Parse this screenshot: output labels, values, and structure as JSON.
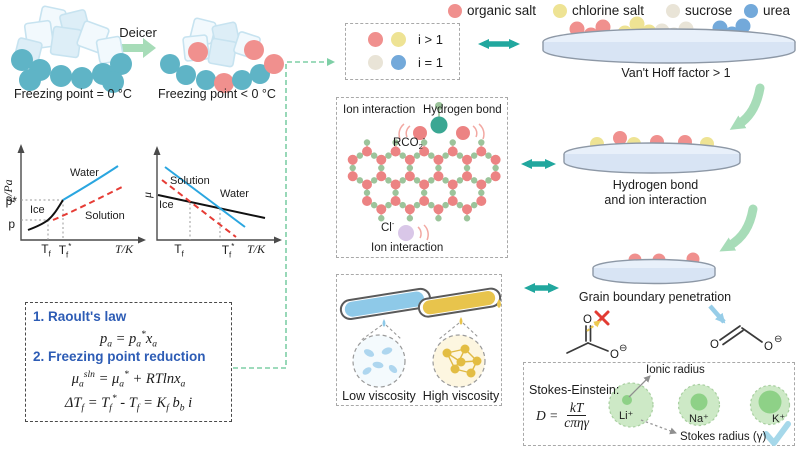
{
  "colors": {
    "organic_salt": "#f0908e",
    "chlorine_salt": "#eee394",
    "sucrose": "#e9e4d7",
    "urea": "#73a9da",
    "teal_disk": "#5fb4c6",
    "teal_arrow": "#21a79e",
    "soft_green_arrow": "#a7dcb8",
    "connector_green": "#7ecfa6",
    "water_curve_blue": "#2aa6e0",
    "solution_curve_red": "#e63c35",
    "heading_blue": "#2d5cb5",
    "dish_fill": "#d8e4f4",
    "lattice_node_red": "#ec8383",
    "lattice_dot_green": "#9cc49b",
    "lattice_bond_pink": "#f0b6ad",
    "rco2_teal": "#3aa793",
    "chloride_purple": "#d9c7e8",
    "low_viscosity_blue": "#8ec9e8",
    "high_viscosity_yellow": "#e8c44c",
    "blob_outer_green": "#cde9c6",
    "blob_core_green": "#8ed187",
    "check_blue": "#a6d8ea",
    "cross_red": "#e23b33"
  },
  "intro": {
    "deicer_label": "Deicer",
    "before_label": "Freezing point = 0 °C",
    "after_label": "Freezing point < 0 °C"
  },
  "legend": {
    "items": [
      {
        "label": "organic salt"
      },
      {
        "label": "chlorine salt"
      },
      {
        "label": "sucrose"
      },
      {
        "label": "urea"
      }
    ],
    "i_gt": "i > 1",
    "i_eq": "i = 1"
  },
  "charts": {
    "vapor_pressure": {
      "ylabel": "p/Pa",
      "xlabel": "T/K",
      "water": "Water",
      "ice": "Ice",
      "solution": "Solution",
      "p_star": "p*",
      "p": "p",
      "tf": "T_{f}",
      "tf_star": "T_{f}^{*}"
    },
    "chemical_potential": {
      "ylabel": "μ",
      "xlabel": "T/K",
      "water": "Water",
      "ice": "Ice",
      "solution": "Solution",
      "tf": "T_{f}",
      "tf_star": "T_{f}^{*}"
    }
  },
  "equations": {
    "heading1": "1. Raoult's law",
    "eq1": "p_{a} =  p_{a}^{*}x_{a}",
    "heading2": "2. Freezing point reduction",
    "eq2": "μ_{a}^{sln} = μ_{a}^{*}  +  RTlnx_{a}",
    "eq3": "ΔT_{f} = T_{f}^{*} - T_{f}  =  K_{f} b_{b} i"
  },
  "pathway": {
    "dish1_caption": "Van't Hoff factor > 1",
    "dish2_caption_line1": "Hydrogen bond",
    "dish2_caption_line2": "and ion interaction",
    "dish3_caption": "Grain boundary penetration"
  },
  "lattice": {
    "ion_interaction_top": "Ion interaction",
    "hydrogen_bond": "Hydrogen bond",
    "rco2": "RCO_{2}^{-}",
    "cl": "Cl^{-}",
    "ion_interaction_bottom": "Ion interaction"
  },
  "viscosity": {
    "low_label": "Low viscosity",
    "high_label": "High viscosity"
  },
  "molecules": {
    "oxygen": "O",
    "circled_minus": "⊖"
  },
  "stokes": {
    "title": "Stokes-Einstein:",
    "d_equals": "D =",
    "numerator": "kT",
    "denominator": "cπηγ",
    "ionic_radius": "Ionic radius",
    "stokes_radius": "Stokes radius (γ)",
    "ions": [
      {
        "label": "Li⁺"
      },
      {
        "label": "Na⁺"
      },
      {
        "label": "K⁺"
      }
    ]
  }
}
